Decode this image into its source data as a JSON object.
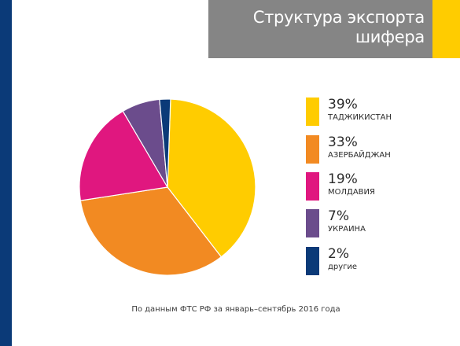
{
  "colors": {
    "side_bar": "#0b3a78",
    "title_bg": "#858585",
    "title_accent": "#ffcc00"
  },
  "title": {
    "line1": "Структура экспорта",
    "line2": "шифера"
  },
  "chart_data": {
    "type": "pie",
    "slices": [
      {
        "label": "ТАДЖИКИСТАН",
        "value": 39,
        "value_label": "39%",
        "color": "#ffcc00"
      },
      {
        "label": "АЗЕРБАЙДЖАН",
        "value": 33,
        "value_label": "33%",
        "color": "#f28a22"
      },
      {
        "label": "МОЛДАВИЯ",
        "value": 19,
        "value_label": "19%",
        "color": "#e0177f"
      },
      {
        "label": "УКРАИНА",
        "value": 7,
        "value_label": "7%",
        "color": "#6b4c8c"
      },
      {
        "label": "другие",
        "value": 2,
        "value_label": "2%",
        "color": "#0b3a78"
      }
    ],
    "legend_position": "right"
  },
  "source_note": "По данным ФТС РФ за январь–сентябрь 2016 года"
}
